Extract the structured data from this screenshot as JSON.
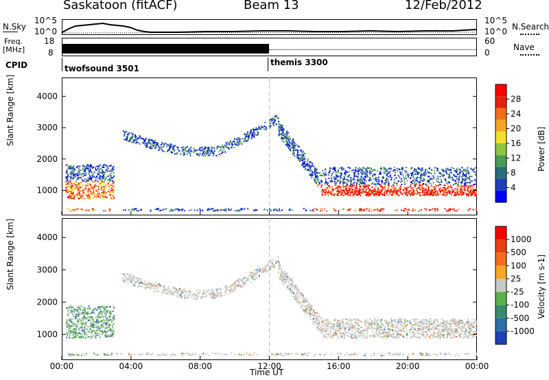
{
  "header": {
    "station": "Saskatoon (fitACF)",
    "beam": "Beam 13",
    "date": "12/Feb/2012"
  },
  "nsky_panel": {
    "left_label": "N.Sky",
    "left_ticks": [
      "10^5",
      "10^0"
    ],
    "right_label": "N.Search",
    "right_ticks": [
      "10^5",
      "10^0"
    ]
  },
  "freq_panel": {
    "left_label_line1": "Freq.",
    "left_label_line2": "[MHz]",
    "left_ticks": [
      "18",
      "8"
    ],
    "right_label": "Nave",
    "right_ticks": [
      "60",
      "0"
    ]
  },
  "cpid_panel": {
    "label": "CPID",
    "programs": [
      "twofsound 3501",
      "themis 3300"
    ]
  },
  "chart_data": [
    {
      "type": "heatmap",
      "name": "power-panel",
      "ylabel": "Slant Range [km]",
      "xlabel": "Time UT",
      "x_ticks": [
        "00:00",
        "04:00",
        "08:00",
        "12:00",
        "16:00",
        "20:00",
        "00:00"
      ],
      "y_ticks": [
        1000,
        2000,
        3000,
        4000
      ],
      "ylim": [
        200,
        4600
      ],
      "xlim_hours": [
        0,
        24
      ],
      "colorbar": {
        "label": "Power [dB]",
        "ticks": [
          4,
          8,
          12,
          16,
          20,
          24,
          28
        ],
        "colors": [
          "#0000ff",
          "#1f3fb8",
          "#2b6e7a",
          "#4a9a55",
          "#8dc63f",
          "#f0e22a",
          "#f5a623",
          "#f36c1c",
          "#e82010",
          "#ff0000"
        ]
      }
    },
    {
      "type": "heatmap",
      "name": "velocity-panel",
      "ylabel": "Slant Range [km]",
      "xlabel": "Time UT",
      "x_ticks": [
        "00:00",
        "04:00",
        "08:00",
        "12:00",
        "16:00",
        "20:00",
        "00:00"
      ],
      "y_ticks": [
        1000,
        2000,
        3000,
        4000
      ],
      "ylim": [
        200,
        4600
      ],
      "xlim_hours": [
        0,
        24
      ],
      "colorbar": {
        "label": "Velocity [m s-1]",
        "ticks": [
          1000,
          500,
          100,
          25,
          -25,
          -100,
          -500,
          -1000
        ],
        "colors": [
          "#1f3fb8",
          "#2b6ea8",
          "#3a8a6a",
          "#5ab04a",
          "#c8c8c8",
          "#f5a623",
          "#f36c1c",
          "#e84010",
          "#ff0000"
        ]
      }
    }
  ],
  "xaxis": {
    "title": "Time UT",
    "ticks": [
      "00:00",
      "04:00",
      "08:00",
      "12:00",
      "16:00",
      "20:00",
      "00:00"
    ]
  }
}
